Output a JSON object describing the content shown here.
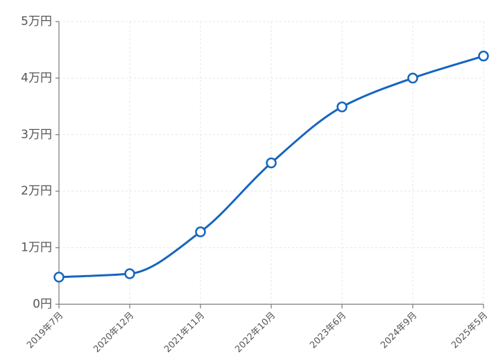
{
  "chart_data": {
    "type": "line",
    "categories": [
      "2019年7月",
      "2020年12月",
      "2021年11月",
      "2022年10月",
      "2023年6月",
      "2024年9月",
      "2025年5月"
    ],
    "values": [
      4800,
      5400,
      12800,
      25000,
      34900,
      40000,
      43900
    ],
    "color": "#1565c0",
    "ylim": [
      0,
      50000
    ],
    "yticks": [
      {
        "value": 0,
        "label": "0円"
      },
      {
        "value": 10000,
        "label": "1万円"
      },
      {
        "value": 20000,
        "label": "2万円"
      },
      {
        "value": 30000,
        "label": "3万円"
      },
      {
        "value": 40000,
        "label": "4万円"
      },
      {
        "value": 50000,
        "label": "5万円"
      }
    ],
    "grid": true
  }
}
